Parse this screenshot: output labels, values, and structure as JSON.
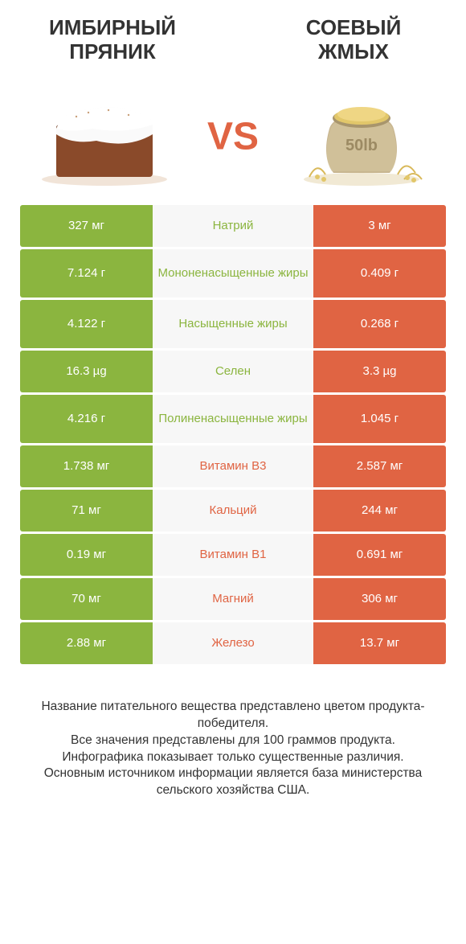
{
  "header": {
    "left_title_l1": "Имбирный",
    "left_title_l2": "пряник",
    "right_title_l1": "Соевый",
    "right_title_l2": "жмых",
    "vs": "VS"
  },
  "colors": {
    "green": "#8bb53f",
    "orange": "#e06443",
    "mid_bg": "#f7f7f7"
  },
  "rows": [
    {
      "left": "327 мг",
      "mid": "Натрий",
      "right": "3 мг",
      "winner": "left",
      "tall": false
    },
    {
      "left": "7.124 г",
      "mid": "Мононенасыщенные жиры",
      "right": "0.409 г",
      "winner": "left",
      "tall": true
    },
    {
      "left": "4.122 г",
      "mid": "Насыщенные жиры",
      "right": "0.268 г",
      "winner": "left",
      "tall": true
    },
    {
      "left": "16.3 µg",
      "mid": "Селен",
      "right": "3.3 µg",
      "winner": "left",
      "tall": false
    },
    {
      "left": "4.216 г",
      "mid": "Полиненасыщенные жиры",
      "right": "1.045 г",
      "winner": "left",
      "tall": true
    },
    {
      "left": "1.738 мг",
      "mid": "Витамин B3",
      "right": "2.587 мг",
      "winner": "right",
      "tall": false
    },
    {
      "left": "71 мг",
      "mid": "Кальций",
      "right": "244 мг",
      "winner": "right",
      "tall": false
    },
    {
      "left": "0.19 мг",
      "mid": "Витамин B1",
      "right": "0.691 мг",
      "winner": "right",
      "tall": false
    },
    {
      "left": "70 мг",
      "mid": "Магний",
      "right": "306 мг",
      "winner": "right",
      "tall": false
    },
    {
      "left": "2.88 мг",
      "mid": "Железо",
      "right": "13.7 мг",
      "winner": "right",
      "tall": false
    }
  ],
  "footer": {
    "l1": "Название питательного вещества представлено цветом продукта-победителя.",
    "l2": "Все значения представлены для 100 граммов продукта.",
    "l3": "Инфографика показывает только существенные различия.",
    "l4": "Основным источником информации является база министерства сельского хозяйства США."
  }
}
